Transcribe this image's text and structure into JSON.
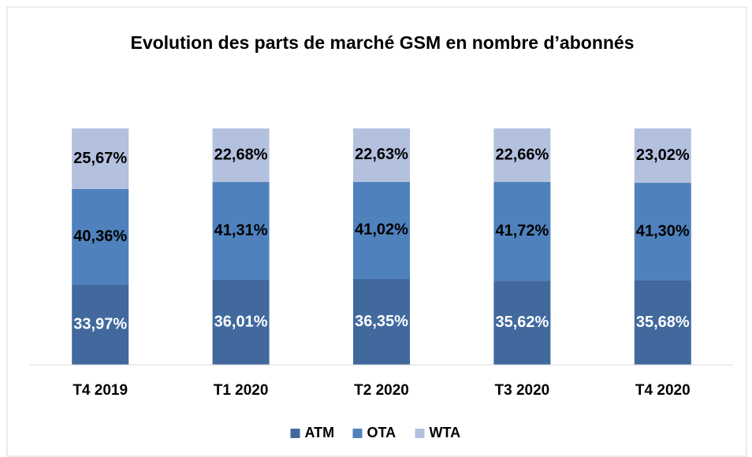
{
  "chart_data": {
    "type": "stacked_bar",
    "title": "Evolution des parts de marché GSM  en nombre d’abonnés",
    "categories": [
      "T4 2019",
      "T1 2020",
      "T2 2020",
      "T3 2020",
      "T4 2020"
    ],
    "series": [
      {
        "name": "ATM",
        "color": "#41699e",
        "values": [
          33.97,
          36.01,
          36.35,
          35.62,
          35.68
        ],
        "value_labels": [
          "33,97%",
          "36,01%",
          "36,35%",
          "35,62%",
          "35,68%"
        ]
      },
      {
        "name": "OTA",
        "color": "#4f81bd",
        "values": [
          40.36,
          41.31,
          41.02,
          41.72,
          41.3
        ],
        "value_labels": [
          "40,36%",
          "41,31%",
          "41,02%",
          "41,72%",
          "41,30%"
        ]
      },
      {
        "name": "WTA",
        "color": "#b3c0de",
        "values": [
          25.67,
          22.68,
          22.63,
          22.66,
          23.02
        ],
        "value_labels": [
          "25,67%",
          "22,68%",
          "22,63%",
          "22,66%",
          "23,02%"
        ]
      }
    ],
    "ylim": [
      0,
      100
    ],
    "legend": "bottom"
  }
}
